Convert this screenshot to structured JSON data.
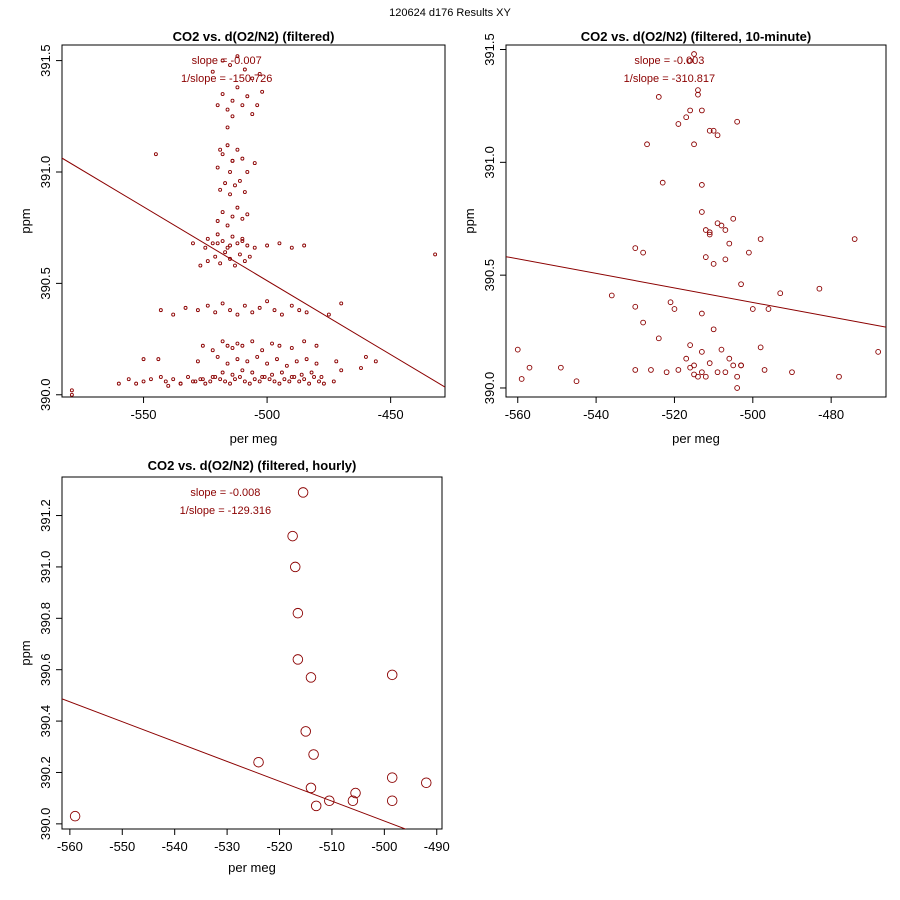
{
  "figure_title": "120624   d176   Results XY",
  "colors": {
    "points": "#8b0000",
    "regression": "#8b0000",
    "annotation": "#8b0000",
    "axes": "#000000"
  },
  "chart_data": [
    {
      "type": "scatter",
      "title": "CO2 vs. d(O2/N2) (filtered)",
      "xlabel": "per meg",
      "ylabel": "ppm",
      "xlim": [
        -583,
        -428
      ],
      "ylim": [
        389.99,
        391.57
      ],
      "xticks": [
        -550,
        -500,
        -450
      ],
      "xtick_labels": [
        "-550",
        "-500",
        "-450"
      ],
      "yticks": [
        390.0,
        390.5,
        391.0,
        391.5
      ],
      "ytick_labels": [
        "390.0",
        "390.5",
        "391.0",
        "391.5"
      ],
      "slope_text": "slope = -0.007",
      "inv_slope_text": "1/slope = -150.726",
      "regression": {
        "slope": -0.00663,
        "intercept": 387.197
      },
      "marker_radius_class": "small",
      "x": [
        -579,
        -579,
        -560,
        -556,
        -553,
        -550,
        -547,
        -543,
        -541,
        -538,
        -535,
        -532,
        -529,
        -527,
        -525,
        -523,
        -521,
        -519,
        -517,
        -515,
        -513,
        -511,
        -509,
        -507,
        -505,
        -503,
        -501,
        -499,
        -497,
        -495,
        -493,
        -491,
        -489,
        -487,
        -485,
        -483,
        -481,
        -479,
        -477,
        -473,
        -540,
        -535,
        -530,
        -526,
        -522,
        -518,
        -514,
        -510,
        -506,
        -502,
        -498,
        -494,
        -490,
        -486,
        -482,
        -478,
        -470,
        -462,
        -550,
        -544,
        -528,
        -520,
        -516,
        -512,
        -508,
        -504,
        -500,
        -496,
        -492,
        -488,
        -484,
        -480,
        -472,
        -460,
        -456,
        -526,
        -522,
        -518,
        -516,
        -514,
        -512,
        -510,
        -506,
        -502,
        -498,
        -495,
        -490,
        -485,
        -480,
        -543,
        -538,
        -533,
        -528,
        -524,
        -521,
        -518,
        -515,
        -512,
        -509,
        -506,
        -503,
        -500,
        -497,
        -494,
        -490,
        -487,
        -484,
        -475,
        -470,
        -432,
        -527,
        -524,
        -521,
        -519,
        -517,
        -515,
        -513,
        -511,
        -509,
        -507,
        -524,
        -522,
        -520,
        -518,
        -516,
        -514,
        -512,
        -510,
        -508,
        -520,
        -518,
        -516,
        -514,
        -512,
        -510,
        -508,
        -519,
        -517,
        -515,
        -513,
        -511,
        -509,
        -518,
        -516,
        -514,
        -512,
        -516,
        -514,
        -545,
        -520,
        -515,
        -510,
        -505,
        -519,
        -514,
        -508,
        -530,
        -525,
        -520,
        -515,
        -510,
        -505,
        -500,
        -495,
        -490,
        -485,
        -520,
        -518,
        -516,
        -514,
        -512,
        -510,
        -508,
        -506,
        -504,
        -502,
        -522,
        -518,
        -515,
        -512,
        -509,
        -506,
        -503
      ],
      "y": [
        390.0,
        390.02,
        390.05,
        390.07,
        390.05,
        390.06,
        390.07,
        390.08,
        390.06,
        390.07,
        390.05,
        390.08,
        390.06,
        390.07,
        390.05,
        390.06,
        390.08,
        390.07,
        390.06,
        390.05,
        390.07,
        390.08,
        390.06,
        390.05,
        390.07,
        390.06,
        390.08,
        390.07,
        390.06,
        390.05,
        390.07,
        390.06,
        390.08,
        390.06,
        390.07,
        390.05,
        390.08,
        390.06,
        390.05,
        390.06,
        390.04,
        390.05,
        390.06,
        390.07,
        390.08,
        390.1,
        390.09,
        390.11,
        390.1,
        390.08,
        390.09,
        390.1,
        390.08,
        390.09,
        390.1,
        390.08,
        390.11,
        390.12,
        390.16,
        390.16,
        390.15,
        390.17,
        390.14,
        390.16,
        390.15,
        390.17,
        390.14,
        390.16,
        390.13,
        390.15,
        390.16,
        390.14,
        390.15,
        390.17,
        390.15,
        390.22,
        390.2,
        390.24,
        390.22,
        390.21,
        390.23,
        390.22,
        390.24,
        390.2,
        390.23,
        390.22,
        390.21,
        390.24,
        390.22,
        390.38,
        390.36,
        390.39,
        390.38,
        390.4,
        390.37,
        390.41,
        390.38,
        390.36,
        390.4,
        390.37,
        390.39,
        390.42,
        390.38,
        390.36,
        390.4,
        390.38,
        390.37,
        390.36,
        390.41,
        390.63,
        390.58,
        390.6,
        390.62,
        390.59,
        390.64,
        390.61,
        390.58,
        390.63,
        390.6,
        390.62,
        390.7,
        390.68,
        390.72,
        390.69,
        390.66,
        390.71,
        390.68,
        390.7,
        390.67,
        390.78,
        390.82,
        390.76,
        390.8,
        390.84,
        390.79,
        390.81,
        390.92,
        390.95,
        390.9,
        390.94,
        390.96,
        390.91,
        391.08,
        391.12,
        391.05,
        391.1,
        391.2,
        391.25,
        391.08,
        391.02,
        391.0,
        391.06,
        391.04,
        391.1,
        391.05,
        391.0,
        390.68,
        390.66,
        390.68,
        390.67,
        390.69,
        390.66,
        390.67,
        390.68,
        390.66,
        390.67,
        391.3,
        391.35,
        391.28,
        391.32,
        391.38,
        391.3,
        391.34,
        391.26,
        391.3,
        391.36,
        391.45,
        391.5,
        391.48,
        391.52,
        391.46,
        391.42,
        391.44
      ]
    },
    {
      "type": "scatter",
      "title": "CO2 vs. d(O2/N2) (filtered, 10-minute)",
      "xlabel": "per meg",
      "ylabel": "ppm",
      "xlim": [
        -563,
        -466
      ],
      "ylim": [
        389.96,
        391.52
      ],
      "xticks": [
        -560,
        -540,
        -520,
        -500,
        -480
      ],
      "xtick_labels": [
        "-560",
        "-540",
        "-520",
        "-500",
        "-480"
      ],
      "yticks": [
        390.0,
        390.5,
        391.0,
        391.5
      ],
      "ytick_labels": [
        "390.0",
        "390.5",
        "391.0",
        "391.5"
      ],
      "slope_text": "slope = -0.003",
      "inv_slope_text": "1/slope = -310.817",
      "regression": {
        "slope": -0.00322,
        "intercept": 388.769
      },
      "marker_radius_class": "medium",
      "x": [
        -560,
        -559,
        -557,
        -549,
        -545,
        -536,
        -530,
        -530,
        -528,
        -526,
        -524,
        -522,
        -521,
        -520,
        -519,
        -517,
        -516,
        -516,
        -515,
        -515,
        -514,
        -513,
        -513,
        -512,
        -511,
        -510,
        -509,
        -508,
        -507,
        -506,
        -505,
        -504,
        -504,
        -503,
        -503,
        -500,
        -498,
        -497,
        -496,
        -493,
        -490,
        -483,
        -478,
        -474,
        -468,
        -524,
        -516,
        -514,
        -511,
        -530,
        -510,
        -515,
        -528,
        -513,
        -507,
        -512,
        -511,
        -509,
        -506,
        -527,
        -523,
        -517,
        -513,
        -512,
        -504,
        -513,
        -510,
        -507,
        -503,
        -501,
        -519,
        -516,
        -515,
        -514,
        -513,
        -511,
        -509,
        -508,
        -505,
        -498
      ],
      "y": [
        390.17,
        390.04,
        390.09,
        390.09,
        390.03,
        390.41,
        390.36,
        390.08,
        390.29,
        390.08,
        390.22,
        390.07,
        390.38,
        390.35,
        390.08,
        390.13,
        390.09,
        390.19,
        390.06,
        390.1,
        390.05,
        390.07,
        390.16,
        390.05,
        390.11,
        390.26,
        390.07,
        390.17,
        390.07,
        390.13,
        390.1,
        390.0,
        390.05,
        390.1,
        390.1,
        390.35,
        390.18,
        390.08,
        390.35,
        390.42,
        390.07,
        390.44,
        390.05,
        390.66,
        390.16,
        391.29,
        391.45,
        391.3,
        391.14,
        390.62,
        391.14,
        391.08,
        390.6,
        391.23,
        390.57,
        390.7,
        390.69,
        390.73,
        390.64,
        391.08,
        390.91,
        391.2,
        390.78,
        390.58,
        391.18,
        390.33,
        390.55,
        390.7,
        390.46,
        390.6,
        391.17,
        391.23,
        391.48,
        391.32,
        390.9,
        390.68,
        391.12,
        390.72,
        390.75,
        390.66
      ]
    },
    {
      "type": "scatter",
      "title": "CO2 vs. d(O2/N2) (filtered, hourly)",
      "xlabel": "per meg",
      "ylabel": "ppm",
      "xlim": [
        -561.5,
        -489
      ],
      "ylim": [
        389.98,
        391.35
      ],
      "xticks": [
        -560,
        -550,
        -540,
        -530,
        -520,
        -510,
        -500,
        -490
      ],
      "xtick_labels": [
        "-560",
        "-550",
        "-540",
        "-530",
        "-520",
        "-510",
        "-500",
        "-490"
      ],
      "yticks": [
        390.0,
        390.2,
        390.4,
        390.6,
        390.8,
        391.0,
        391.2
      ],
      "ytick_labels": [
        "390.0",
        "390.2",
        "390.4",
        "390.6",
        "390.8",
        "391.0",
        "391.2"
      ],
      "slope_text": "slope = -0.008",
      "inv_slope_text": "1/slope = -129.316",
      "regression": {
        "slope": -0.00773,
        "intercept": 386.146
      },
      "marker_radius_class": "large",
      "x": [
        -559,
        -524,
        -517.5,
        -517,
        -516.5,
        -516.5,
        -515.5,
        -515,
        -514,
        -514,
        -513.5,
        -513,
        -510.5,
        -506,
        -505.5,
        -498.5,
        -498.5,
        -498.5,
        -492
      ],
      "y": [
        390.03,
        390.24,
        391.12,
        391.0,
        390.82,
        390.64,
        391.29,
        390.36,
        390.57,
        390.14,
        390.27,
        390.07,
        390.09,
        390.09,
        390.12,
        390.18,
        390.58,
        390.09,
        390.16
      ]
    }
  ]
}
